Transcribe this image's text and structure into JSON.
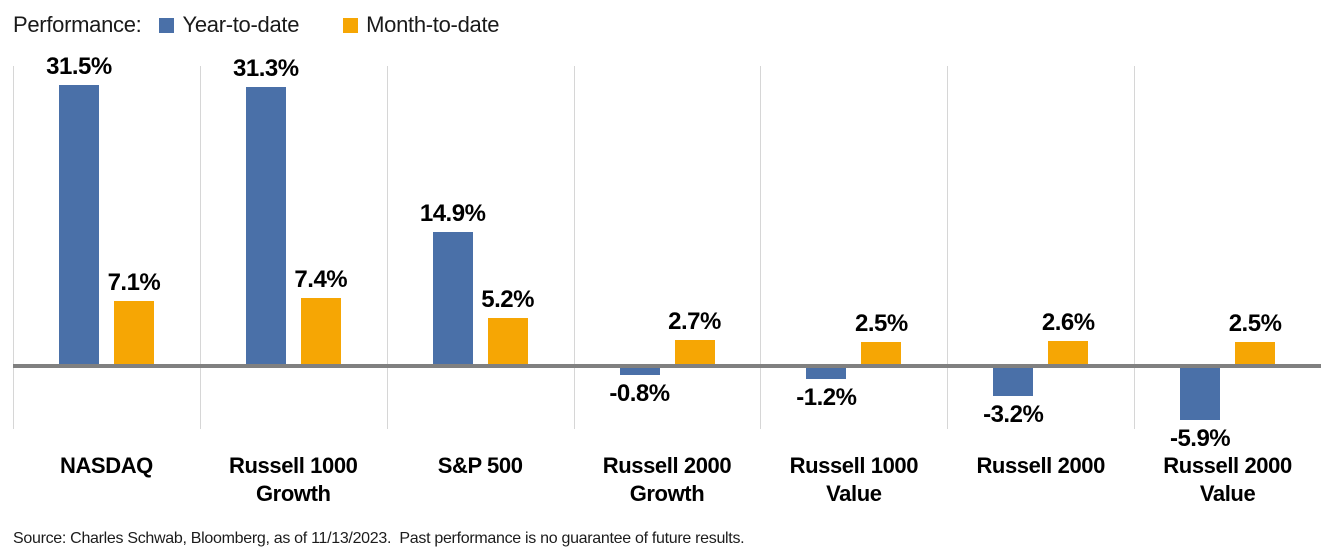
{
  "legend": {
    "title": "Performance:",
    "items": [
      {
        "label": "Year-to-date",
        "color": "#4A70A8"
      },
      {
        "label": "Month-to-date",
        "color": "#F6A604"
      }
    ]
  },
  "chart_data": {
    "type": "bar",
    "title": "Performance: Year-to-date vs Month-to-date",
    "categories": [
      "NASDAQ",
      "Russell 1000 Growth",
      "S&P 500",
      "Russell 2000 Growth",
      "Russell 1000 Value",
      "Russell 2000",
      "Russell 2000 Value"
    ],
    "series": [
      {
        "name": "Year-to-date",
        "color": "#4A70A8",
        "values": [
          31.5,
          31.3,
          14.9,
          -0.8,
          -1.2,
          -3.2,
          -5.9
        ]
      },
      {
        "name": "Month-to-date",
        "color": "#F6A604",
        "values": [
          7.1,
          7.4,
          5.2,
          2.7,
          2.5,
          2.6,
          2.5
        ]
      }
    ],
    "value_label_suffix": "%",
    "ylabel": "",
    "xlabel": "",
    "ylim": [
      -8,
      34
    ],
    "grid": "vertical-category-separators",
    "separator_color": "#d6d6d6",
    "baseline_color": "#808080",
    "legend_position": "top-left",
    "data_labels": true
  },
  "footer": {
    "source": "Source: Charles Schwab, Bloomberg, as of 11/13/2023.  Past performance is no guarantee of future results."
  }
}
